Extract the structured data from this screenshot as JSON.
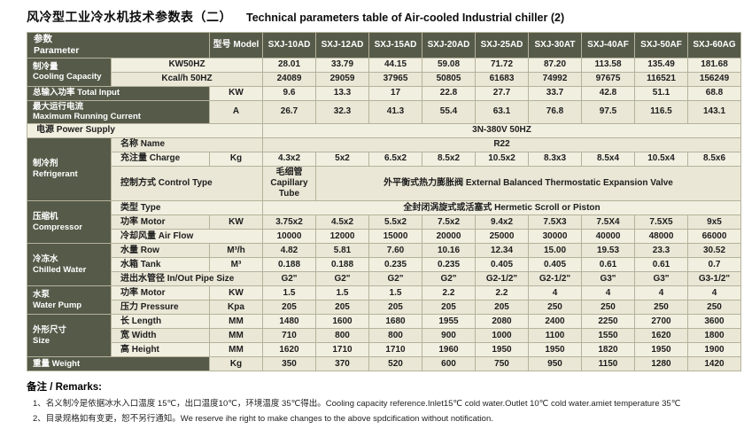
{
  "page": {
    "title_zh": "风冷型工业冷水机技术参数表（二）",
    "title_en": "Technical parameters table of Air-cooled Industrial chiller (2)"
  },
  "colors": {
    "header_bg": "#565a49",
    "header_text": "#ffffff",
    "cell_bg": "#f1efe0",
    "cell_alt_bg": "#eae7d6",
    "grid": "#b5b29b"
  },
  "table": {
    "header": {
      "corner": "参数\nParameter",
      "model_label": "型号 Model",
      "models": [
        "SXJ-10AD",
        "SXJ-12AD",
        "SXJ-15AD",
        "SXJ-20AD",
        "SXJ-25AD",
        "SXJ-30AT",
        "SXJ-40AF",
        "SXJ-50AF",
        "SXJ-60AG"
      ]
    },
    "body_rows": [
      {
        "cells": [
          {
            "t": "制冷量\nCooling Capacity",
            "k": "dark",
            "rs": 2
          },
          {
            "t": "KW50HZ",
            "k": "unit",
            "cs": 2
          },
          {
            "t": "28.01"
          },
          {
            "t": "33.79"
          },
          {
            "t": "44.15"
          },
          {
            "t": "59.08"
          },
          {
            "t": "71.72"
          },
          {
            "t": "87.20"
          },
          {
            "t": "113.58"
          },
          {
            "t": "135.49"
          },
          {
            "t": "181.68"
          }
        ]
      },
      {
        "cells": [
          {
            "t": "Kcal/h 50HZ",
            "k": "unit",
            "cs": 2
          },
          {
            "t": "24089"
          },
          {
            "t": "29059"
          },
          {
            "t": "37965"
          },
          {
            "t": "50805"
          },
          {
            "t": "61683"
          },
          {
            "t": "74992"
          },
          {
            "t": "97675"
          },
          {
            "t": "116521"
          },
          {
            "t": "156249"
          }
        ]
      },
      {
        "cells": [
          {
            "t": "总输入功率 Total Input",
            "k": "dark",
            "cs": 2
          },
          {
            "t": "KW",
            "k": "unit"
          },
          {
            "t": "9.6"
          },
          {
            "t": "13.3"
          },
          {
            "t": "17"
          },
          {
            "t": "22.8"
          },
          {
            "t": "27.7"
          },
          {
            "t": "33.7"
          },
          {
            "t": "42.8"
          },
          {
            "t": "51.1"
          },
          {
            "t": "68.8"
          }
        ]
      },
      {
        "tall": true,
        "cells": [
          {
            "t": "最大运行电流\nMaximum Running Current",
            "k": "dark",
            "cs": 2
          },
          {
            "t": "A",
            "k": "unit"
          },
          {
            "t": "26.7"
          },
          {
            "t": "32.3"
          },
          {
            "t": "41.3"
          },
          {
            "t": "55.4"
          },
          {
            "t": "63.1"
          },
          {
            "t": "76.8"
          },
          {
            "t": "97.5"
          },
          {
            "t": "116.5"
          },
          {
            "t": "143.1"
          }
        ]
      },
      {
        "cells": [
          {
            "t": "电源 Power Supply",
            "k": "label",
            "cs": 3
          },
          {
            "t": "3N-380V 50HZ",
            "cs": 9
          }
        ]
      },
      {
        "cells": [
          {
            "t": "制冷剂\nRefrigerant",
            "k": "dark",
            "rs": 3
          },
          {
            "t": "名称 Name",
            "k": "label",
            "cs": 2
          },
          {
            "t": "R22",
            "cs": 9
          }
        ]
      },
      {
        "cells": [
          {
            "t": "充注量 Charge",
            "k": "label"
          },
          {
            "t": "Kg",
            "k": "unit"
          },
          {
            "t": "4.3x2"
          },
          {
            "t": "5x2"
          },
          {
            "t": "6.5x2"
          },
          {
            "t": "8.5x2"
          },
          {
            "t": "10.5x2"
          },
          {
            "t": "8.3x3"
          },
          {
            "t": "8.5x4"
          },
          {
            "t": "10.5x4"
          },
          {
            "t": "8.5x6"
          }
        ]
      },
      {
        "tall": true,
        "cells": [
          {
            "t": "控制方式 Control Type",
            "k": "label",
            "cs": 2
          },
          {
            "t": "毛细管\nCapillary Tube"
          },
          {
            "t": "外平衡式热力膨胀阀 External Balanced Thermostatic Expansion Valve",
            "cs": 8
          }
        ]
      },
      {
        "cells": [
          {
            "t": "压缩机\nCompressor",
            "k": "dark",
            "rs": 3
          },
          {
            "t": "类型 Type",
            "k": "label",
            "cs": 2
          },
          {
            "t": "全封闭涡旋式或活塞式 Hermetic Scroll or Piston",
            "cs": 9
          }
        ]
      },
      {
        "cells": [
          {
            "t": "功率 Motor",
            "k": "label"
          },
          {
            "t": "KW",
            "k": "unit"
          },
          {
            "t": "3.75x2"
          },
          {
            "t": "4.5x2"
          },
          {
            "t": "5.5x2"
          },
          {
            "t": "7.5x2"
          },
          {
            "t": "9.4x2"
          },
          {
            "t": "7.5X3"
          },
          {
            "t": "7.5X4"
          },
          {
            "t": "7.5X5"
          },
          {
            "t": "9x5"
          }
        ]
      },
      {
        "cells": [
          {
            "t": "冷却风量 Air Flow",
            "k": "label",
            "cs": 2
          },
          {
            "t": "10000"
          },
          {
            "t": "12000"
          },
          {
            "t": "15000"
          },
          {
            "t": "20000"
          },
          {
            "t": "25000"
          },
          {
            "t": "30000"
          },
          {
            "t": "40000"
          },
          {
            "t": "48000"
          },
          {
            "t": "66000"
          }
        ]
      },
      {
        "cells": [
          {
            "t": "冷冻水\nChilled Water",
            "k": "dark",
            "rs": 3
          },
          {
            "t": "水量 Row",
            "k": "label"
          },
          {
            "t": "M³/h",
            "k": "unit"
          },
          {
            "t": "4.82"
          },
          {
            "t": "5.81"
          },
          {
            "t": "7.60"
          },
          {
            "t": "10.16"
          },
          {
            "t": "12.34"
          },
          {
            "t": "15.00"
          },
          {
            "t": "19.53"
          },
          {
            "t": "23.3"
          },
          {
            "t": "30.52"
          }
        ]
      },
      {
        "cells": [
          {
            "t": "水箱 Tank",
            "k": "label"
          },
          {
            "t": "M³",
            "k": "unit"
          },
          {
            "t": "0.188"
          },
          {
            "t": "0.188"
          },
          {
            "t": "0.235"
          },
          {
            "t": "0.235"
          },
          {
            "t": "0.405"
          },
          {
            "t": "0.405"
          },
          {
            "t": "0.61"
          },
          {
            "t": "0.61"
          },
          {
            "t": "0.7"
          }
        ]
      },
      {
        "cells": [
          {
            "t": "进出水管径 In/Out Pipe Size",
            "k": "label",
            "cs": 2
          },
          {
            "t": "G2\""
          },
          {
            "t": "G2\""
          },
          {
            "t": "G2\""
          },
          {
            "t": "G2\""
          },
          {
            "t": "G2-1/2\""
          },
          {
            "t": "G2-1/2\""
          },
          {
            "t": "G3\""
          },
          {
            "t": "G3\""
          },
          {
            "t": "G3-1/2\""
          }
        ]
      },
      {
        "cells": [
          {
            "t": "水泵\nWater Pump",
            "k": "dark",
            "rs": 2
          },
          {
            "t": "功率 Motor",
            "k": "label"
          },
          {
            "t": "KW",
            "k": "unit"
          },
          {
            "t": "1.5"
          },
          {
            "t": "1.5"
          },
          {
            "t": "1.5"
          },
          {
            "t": "2.2"
          },
          {
            "t": "2.2"
          },
          {
            "t": "4"
          },
          {
            "t": "4"
          },
          {
            "t": "4"
          },
          {
            "t": "4"
          }
        ]
      },
      {
        "cells": [
          {
            "t": "压力 Pressure",
            "k": "label"
          },
          {
            "t": "Kpa",
            "k": "unit"
          },
          {
            "t": "205"
          },
          {
            "t": "205"
          },
          {
            "t": "205"
          },
          {
            "t": "205"
          },
          {
            "t": "205"
          },
          {
            "t": "250"
          },
          {
            "t": "250"
          },
          {
            "t": "250"
          },
          {
            "t": "250"
          }
        ]
      },
      {
        "cells": [
          {
            "t": "外形尺寸\nSize",
            "k": "dark",
            "rs": 3
          },
          {
            "t": "长 Length",
            "k": "label"
          },
          {
            "t": "MM",
            "k": "unit"
          },
          {
            "t": "1480"
          },
          {
            "t": "1600"
          },
          {
            "t": "1680"
          },
          {
            "t": "1955"
          },
          {
            "t": "2080"
          },
          {
            "t": "2400"
          },
          {
            "t": "2250"
          },
          {
            "t": "2700"
          },
          {
            "t": "3600"
          }
        ]
      },
      {
        "cells": [
          {
            "t": "宽 Width",
            "k": "label"
          },
          {
            "t": "MM",
            "k": "unit"
          },
          {
            "t": "710"
          },
          {
            "t": "800"
          },
          {
            "t": "800"
          },
          {
            "t": "900"
          },
          {
            "t": "1000"
          },
          {
            "t": "1100"
          },
          {
            "t": "1550"
          },
          {
            "t": "1620"
          },
          {
            "t": "1800"
          }
        ]
      },
      {
        "cells": [
          {
            "t": "高 Height",
            "k": "label"
          },
          {
            "t": "MM",
            "k": "unit"
          },
          {
            "t": "1620"
          },
          {
            "t": "1710"
          },
          {
            "t": "1710"
          },
          {
            "t": "1960"
          },
          {
            "t": "1950"
          },
          {
            "t": "1950"
          },
          {
            "t": "1820"
          },
          {
            "t": "1950"
          },
          {
            "t": "1900"
          }
        ]
      },
      {
        "cells": [
          {
            "t": "重量 Weight",
            "k": "dark",
            "cs": 2
          },
          {
            "t": "Kg",
            "k": "unit"
          },
          {
            "t": "350"
          },
          {
            "t": "370"
          },
          {
            "t": "520"
          },
          {
            "t": "600"
          },
          {
            "t": "750"
          },
          {
            "t": "950"
          },
          {
            "t": "1150"
          },
          {
            "t": "1280"
          },
          {
            "t": "1420"
          }
        ]
      }
    ]
  },
  "remarks": {
    "heading": "备注 / Remarks:",
    "lines": [
      "1、名义制冷是依据冰水入口温度 15℃，出口温度10℃，环境温度 35℃得出。Cooling capacity reference.Inlet15℃ cold water.Outlet 10℃ cold water.amiet temperature 35℃",
      "2、目录规格如有变更，恕不另行通知。We reserve ihe right to make changes to the above spdcification without notification."
    ]
  }
}
